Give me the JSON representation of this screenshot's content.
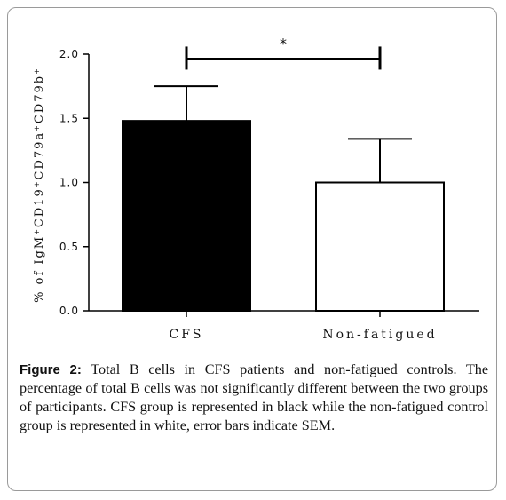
{
  "chart_data": {
    "type": "bar",
    "categories": [
      "CFS",
      "Non-fatigued"
    ],
    "values": [
      1.48,
      1.0
    ],
    "errors": [
      0.27,
      0.34
    ],
    "bar_colors": [
      "#000000",
      "#ffffff"
    ],
    "ylabel_parts": [
      "% of IgM",
      "+",
      "CD19",
      "+",
      "CD79a",
      "+",
      "CD79b",
      "+"
    ],
    "ylim": [
      0,
      2.0
    ],
    "yticks": [
      "0.0",
      "0.5",
      "1.0",
      "1.5",
      "2.0"
    ],
    "ytick_values": [
      0,
      0.5,
      1.0,
      1.5,
      2.0
    ],
    "significance": {
      "label": "*",
      "between": [
        0,
        1
      ],
      "y": 1.99
    }
  },
  "caption": {
    "label": "Figure 2:",
    "text": "Total B cells in CFS patients and non-fatigued controls. The percentage of total B cells was not significantly different between the two groups of participants. CFS group is represented in black while the non-fatigued control group is represented in white, error bars indicate SEM."
  }
}
